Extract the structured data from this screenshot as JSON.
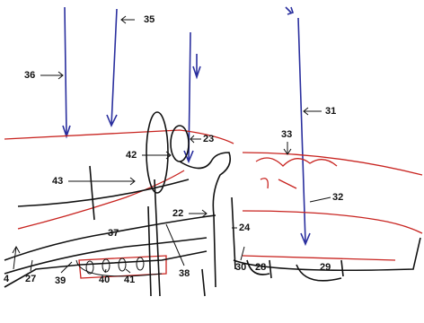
{
  "labels": [
    "35",
    "36",
    "31",
    "23",
    "33",
    "42",
    "43",
    "32",
    "22",
    "24",
    "37",
    "4",
    "27",
    "39",
    "40",
    "41",
    "38",
    "30",
    "28",
    "29"
  ]
}
